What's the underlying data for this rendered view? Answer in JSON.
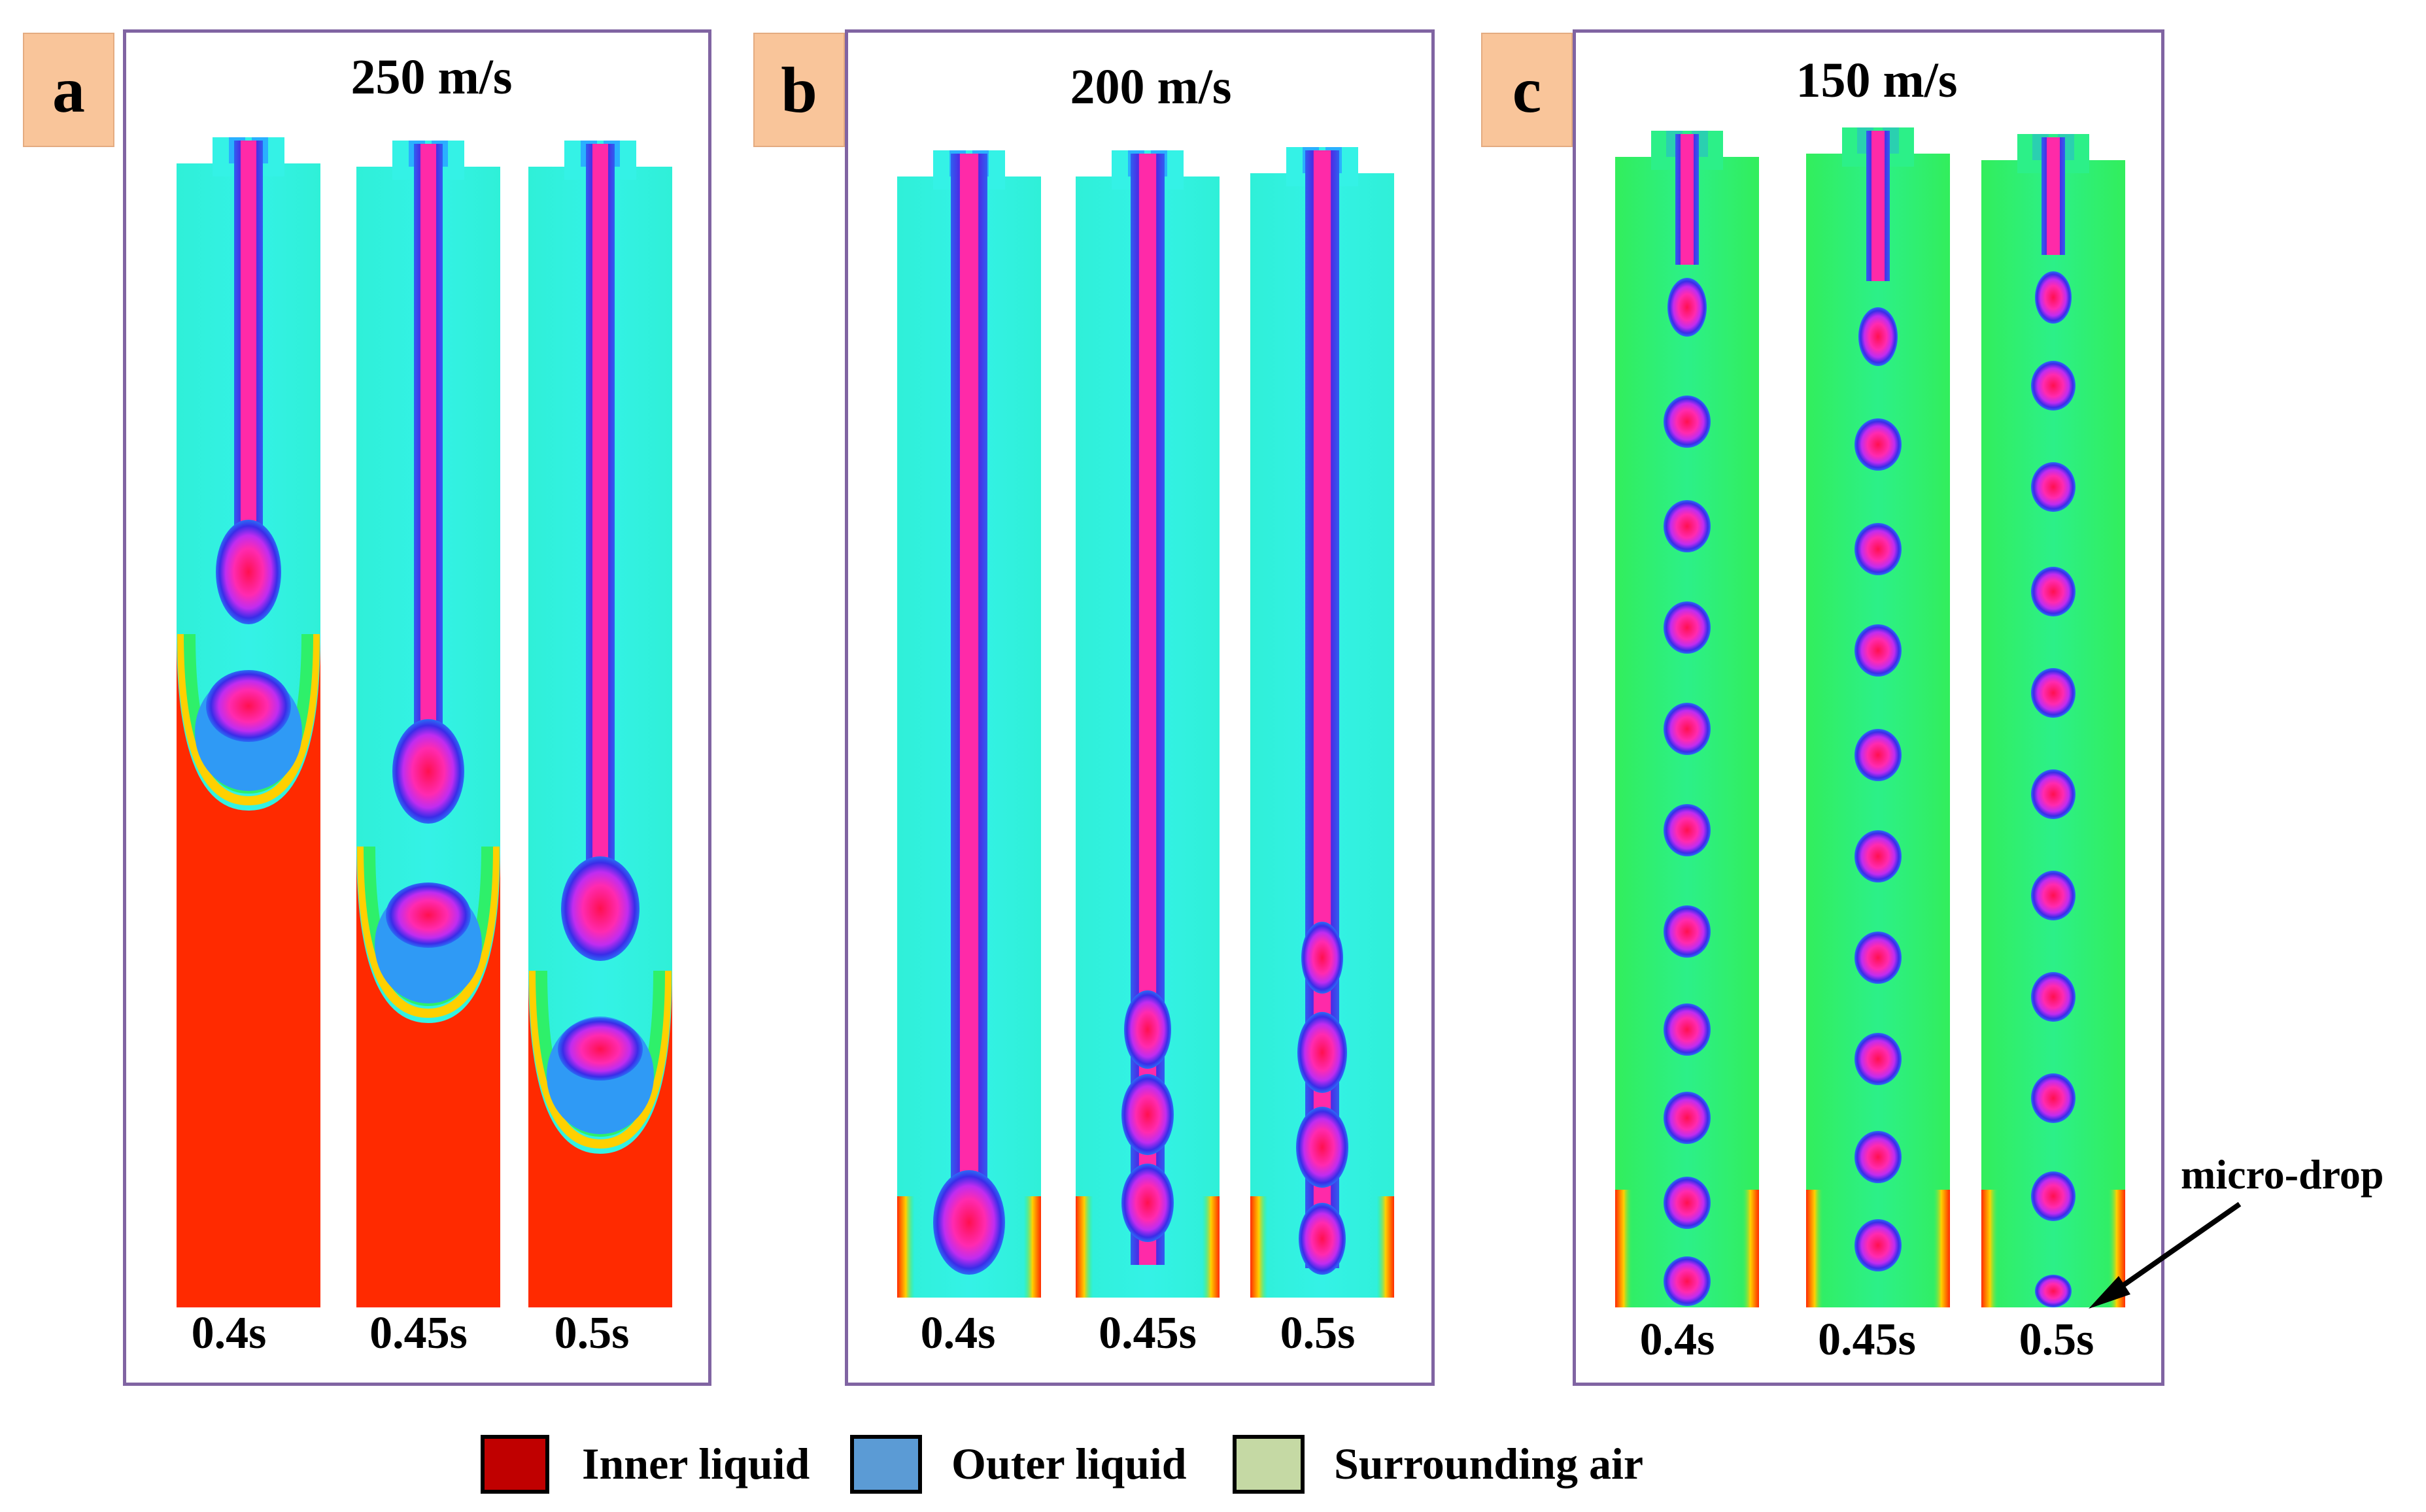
{
  "panels": [
    {
      "letter": "a",
      "speed": "250 m/s",
      "times": [
        "0.4s",
        "0.45s",
        "0.5s"
      ]
    },
    {
      "letter": "b",
      "speed": "200 m/s",
      "times": [
        "0.4s",
        "0.45s",
        "0.5s"
      ]
    },
    {
      "letter": "c",
      "speed": "150 m/s",
      "times": [
        "0.4s",
        "0.45s",
        "0.5s"
      ]
    }
  ],
  "annotation": {
    "label": "micro-drop"
  },
  "legend": [
    {
      "label": "Inner liquid",
      "color": "#c00000"
    },
    {
      "label": "Outer liquid",
      "color": "#5b9bd5"
    },
    {
      "label": "Surrounding air",
      "color": "#c5d9a4"
    }
  ],
  "colors": {
    "frame": "#8064a2",
    "badge": "#f9c59a",
    "field_red": "#ff2a00",
    "field_cyan": "#2ff3dc",
    "field_green": "#2ef06a",
    "core_magenta": "#ff2aa0",
    "ring_blue": "#3b2ce0"
  }
}
